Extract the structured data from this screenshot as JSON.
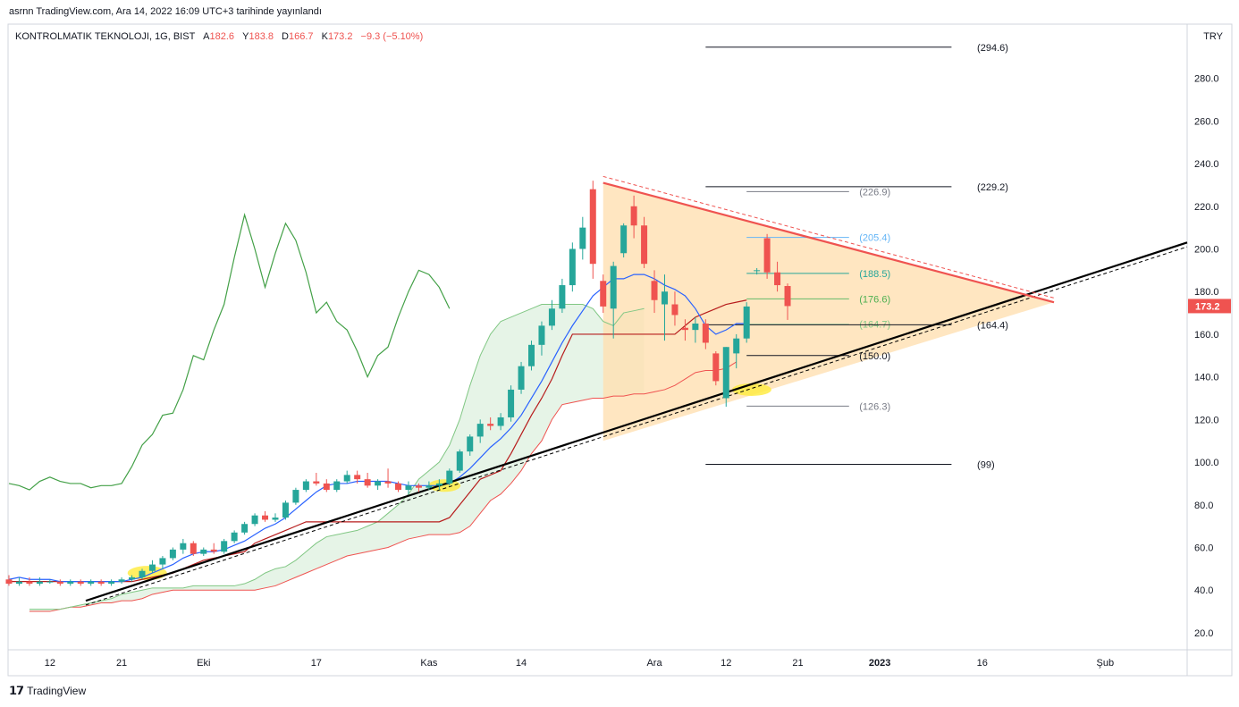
{
  "header": {
    "published": "asrnn TradingView.com, Ara 14, 2022 16:09 UTC+3 tarihinde yayınlandı"
  },
  "legend": {
    "symbol": "KONTROLMATIK TEKNOLOJI, 1G, BIST",
    "open_key": "A",
    "open": "182.6",
    "high_key": "Y",
    "high": "183.8",
    "low_key": "D",
    "low": "166.7",
    "close_key": "K",
    "close": "173.2",
    "change": "−9.3 (−5.10%)"
  },
  "price_axis": {
    "currency": "TRY",
    "last_price": "173.2",
    "last_color": "#ef5350"
  },
  "footer": {
    "brand": "TradingView"
  },
  "colors": {
    "up": "#26a69a",
    "down": "#ef5350",
    "triangle": "#ffe0b2",
    "cloud": "#c8e6c9",
    "fib_blue": "#64b5f6",
    "fib_green": "#26a69a"
  },
  "chart_data": {
    "type": "candlestick",
    "y_axis": {
      "range": [
        12,
        305
      ],
      "ticks": [
        20.0,
        40.0,
        60.0,
        80.0,
        100.0,
        120.0,
        140.0,
        160.0,
        180.0,
        200.0,
        220.0,
        240.0,
        260.0,
        280.0
      ],
      "tick_labels": [
        "20.0",
        "40.0",
        "60.0",
        "80.0",
        "100.0",
        "120.0",
        "140.0",
        "160.0",
        "180.0",
        "200.0",
        "220.0",
        "240.0",
        "260.0",
        "280.0"
      ]
    },
    "x_axis": {
      "range": [
        0,
        115
      ],
      "ticks": [
        {
          "i": 4,
          "label": "12"
        },
        {
          "i": 11,
          "label": "21"
        },
        {
          "i": 19,
          "label": "Eki"
        },
        {
          "i": 30,
          "label": "17"
        },
        {
          "i": 41,
          "label": "Kas"
        },
        {
          "i": 50,
          "label": "14"
        },
        {
          "i": 63,
          "label": "Ara"
        },
        {
          "i": 70,
          "label": "12"
        },
        {
          "i": 77,
          "label": "21"
        },
        {
          "i": 85,
          "label": "2023",
          "bold": true
        },
        {
          "i": 95,
          "label": "16"
        },
        {
          "i": 107,
          "label": "Şub"
        }
      ]
    },
    "candles": [
      {
        "o": 45,
        "h": 47,
        "l": 42,
        "c": 43
      },
      {
        "o": 43,
        "h": 46,
        "l": 42,
        "c": 44
      },
      {
        "o": 44,
        "h": 46,
        "l": 42,
        "c": 43
      },
      {
        "o": 43,
        "h": 46,
        "l": 42,
        "c": 44
      },
      {
        "o": 44,
        "h": 45,
        "l": 43,
        "c": 44
      },
      {
        "o": 44,
        "h": 45,
        "l": 42,
        "c": 43
      },
      {
        "o": 43,
        "h": 45,
        "l": 42,
        "c": 44
      },
      {
        "o": 44,
        "h": 45,
        "l": 42,
        "c": 43
      },
      {
        "o": 43,
        "h": 45,
        "l": 42,
        "c": 44
      },
      {
        "o": 44,
        "h": 45,
        "l": 42,
        "c": 43
      },
      {
        "o": 43,
        "h": 45,
        "l": 42,
        "c": 44
      },
      {
        "o": 44,
        "h": 46,
        "l": 43,
        "c": 45
      },
      {
        "o": 45,
        "h": 47,
        "l": 44,
        "c": 46
      },
      {
        "o": 46,
        "h": 50,
        "l": 45,
        "c": 49
      },
      {
        "o": 49,
        "h": 54,
        "l": 48,
        "c": 52
      },
      {
        "o": 52,
        "h": 56,
        "l": 50,
        "c": 55
      },
      {
        "o": 55,
        "h": 60,
        "l": 54,
        "c": 59
      },
      {
        "o": 59,
        "h": 64,
        "l": 57,
        "c": 62
      },
      {
        "o": 62,
        "h": 63,
        "l": 56,
        "c": 57
      },
      {
        "o": 57,
        "h": 60,
        "l": 56,
        "c": 59
      },
      {
        "o": 59,
        "h": 62,
        "l": 57,
        "c": 58
      },
      {
        "o": 58,
        "h": 64,
        "l": 57,
        "c": 63
      },
      {
        "o": 63,
        "h": 68,
        "l": 62,
        "c": 67
      },
      {
        "o": 67,
        "h": 72,
        "l": 66,
        "c": 71
      },
      {
        "o": 71,
        "h": 76,
        "l": 70,
        "c": 75
      },
      {
        "o": 75,
        "h": 77,
        "l": 72,
        "c": 73
      },
      {
        "o": 73,
        "h": 76,
        "l": 72,
        "c": 74
      },
      {
        "o": 74,
        "h": 82,
        "l": 73,
        "c": 81
      },
      {
        "o": 81,
        "h": 88,
        "l": 80,
        "c": 87
      },
      {
        "o": 87,
        "h": 92,
        "l": 86,
        "c": 91
      },
      {
        "o": 91,
        "h": 95,
        "l": 89,
        "c": 90
      },
      {
        "o": 90,
        "h": 92,
        "l": 86,
        "c": 87
      },
      {
        "o": 87,
        "h": 92,
        "l": 86,
        "c": 91
      },
      {
        "o": 91,
        "h": 96,
        "l": 90,
        "c": 94
      },
      {
        "o": 94,
        "h": 96,
        "l": 90,
        "c": 92
      },
      {
        "o": 92,
        "h": 95,
        "l": 88,
        "c": 89
      },
      {
        "o": 89,
        "h": 92,
        "l": 87,
        "c": 91
      },
      {
        "o": 91,
        "h": 97,
        "l": 88,
        "c": 90
      },
      {
        "o": 90,
        "h": 91,
        "l": 86,
        "c": 87
      },
      {
        "o": 87,
        "h": 91,
        "l": 85,
        "c": 89
      },
      {
        "o": 89,
        "h": 90,
        "l": 86,
        "c": 88
      },
      {
        "o": 88,
        "h": 91,
        "l": 87,
        "c": 89
      },
      {
        "o": 89,
        "h": 92,
        "l": 87,
        "c": 90
      },
      {
        "o": 90,
        "h": 97,
        "l": 89,
        "c": 96
      },
      {
        "o": 96,
        "h": 106,
        "l": 95,
        "c": 105
      },
      {
        "o": 105,
        "h": 113,
        "l": 103,
        "c": 112
      },
      {
        "o": 112,
        "h": 120,
        "l": 109,
        "c": 118
      },
      {
        "o": 118,
        "h": 121,
        "l": 115,
        "c": 117
      },
      {
        "o": 117,
        "h": 123,
        "l": 115,
        "c": 121
      },
      {
        "o": 121,
        "h": 136,
        "l": 119,
        "c": 134
      },
      {
        "o": 134,
        "h": 147,
        "l": 132,
        "c": 145
      },
      {
        "o": 145,
        "h": 157,
        "l": 143,
        "c": 155
      },
      {
        "o": 155,
        "h": 166,
        "l": 150,
        "c": 164
      },
      {
        "o": 164,
        "h": 176,
        "l": 162,
        "c": 172
      },
      {
        "o": 172,
        "h": 186,
        "l": 170,
        "c": 183
      },
      {
        "o": 183,
        "h": 203,
        "l": 180,
        "c": 200
      },
      {
        "o": 200,
        "h": 215,
        "l": 195,
        "c": 210
      },
      {
        "o": 228,
        "h": 232,
        "l": 186,
        "c": 193
      },
      {
        "o": 185,
        "h": 188,
        "l": 170,
        "c": 173
      },
      {
        "o": 172,
        "h": 194,
        "l": 158,
        "c": 192
      },
      {
        "o": 198,
        "h": 212,
        "l": 196,
        "c": 211
      },
      {
        "o": 220,
        "h": 225,
        "l": 205,
        "c": 211
      },
      {
        "o": 211,
        "h": 215,
        "l": 191,
        "c": 193
      },
      {
        "o": 185,
        "h": 190,
        "l": 170,
        "c": 176
      },
      {
        "o": 174,
        "h": 188,
        "l": 157,
        "c": 180
      },
      {
        "o": 174,
        "h": 180,
        "l": 164,
        "c": 169
      },
      {
        "o": 163,
        "h": 167,
        "l": 157,
        "c": 162
      },
      {
        "o": 162,
        "h": 168,
        "l": 156,
        "c": 165
      },
      {
        "o": 165,
        "h": 167,
        "l": 153,
        "c": 156
      },
      {
        "o": 151,
        "h": 152,
        "l": 136,
        "c": 138
      },
      {
        "o": 130,
        "h": 154,
        "l": 126,
        "c": 154
      },
      {
        "o": 151,
        "h": 160,
        "l": 144,
        "c": 158
      },
      {
        "o": 158,
        "h": 175,
        "l": 156,
        "c": 173
      },
      {
        "o": 190,
        "h": 191,
        "l": 188,
        "c": 190
      },
      {
        "o": 205,
        "h": 207,
        "l": 186,
        "c": 189
      },
      {
        "o": 189,
        "h": 194,
        "l": 180,
        "c": 183
      },
      {
        "o": 182.6,
        "h": 183.8,
        "l": 166.7,
        "c": 173.2
      }
    ],
    "series": [
      {
        "name": "",
        "color": "#2962ff",
        "values": [
          45,
          46,
          45,
          45,
          45,
          44,
          44,
          44,
          44,
          44,
          44,
          44,
          45,
          46,
          48,
          50,
          52,
          55,
          57,
          58,
          58,
          59,
          61,
          63,
          66,
          69,
          71,
          74,
          78,
          82,
          86,
          89,
          90,
          90,
          91,
          91,
          91,
          91,
          90,
          89,
          89,
          89,
          89,
          90,
          93,
          97,
          102,
          107,
          111,
          116,
          122,
          130,
          138,
          147,
          156,
          164,
          171,
          178,
          182,
          186,
          186,
          188,
          188,
          186,
          183,
          181,
          178,
          172,
          164,
          160,
          162,
          165,
          165
        ]
      },
      {
        "name": "",
        "color": "#b71c1c",
        "values": [
          44,
          44,
          44,
          44,
          44,
          44,
          44,
          44,
          44,
          44,
          44,
          44,
          44,
          45,
          46,
          47,
          48,
          50,
          52,
          54,
          55,
          56,
          57,
          58,
          62,
          64,
          66,
          68,
          70,
          72,
          72,
          72,
          72,
          72,
          72,
          72,
          72,
          72,
          72,
          72,
          72,
          72,
          72,
          74,
          80,
          86,
          92,
          94,
          96,
          104,
          113,
          122,
          130,
          139,
          150,
          160,
          160,
          160,
          160,
          160,
          160,
          160,
          160,
          160,
          160,
          160,
          164,
          168,
          170,
          172,
          174,
          175,
          176
        ]
      },
      {
        "name": "",
        "color": "#43a047",
        "values": [
          90,
          89,
          87,
          91,
          93,
          91,
          90,
          90,
          88,
          89,
          89,
          90,
          98,
          108,
          113,
          122,
          123,
          134,
          150,
          148,
          162,
          174,
          196,
          216,
          200,
          182,
          198,
          212,
          204,
          189,
          170,
          175,
          166,
          162,
          152,
          140,
          150,
          154,
          168,
          180,
          190,
          188,
          182,
          172
        ]
      },
      {
        "name": "",
        "color": "#ef9a9a",
        "values": [
          30,
          30,
          30,
          31,
          32,
          32,
          33,
          34,
          34,
          35,
          35,
          36,
          38,
          39,
          40,
          40,
          40,
          40,
          40,
          40,
          40,
          40,
          40,
          41,
          42,
          44,
          46,
          48,
          50,
          52,
          54,
          56,
          57,
          58,
          59,
          60,
          62,
          64,
          65,
          66,
          66,
          66,
          67,
          70,
          76,
          82,
          85,
          90,
          96,
          104,
          110,
          120,
          127,
          128,
          129,
          130,
          130,
          131,
          131,
          132,
          132,
          133,
          134,
          136,
          139,
          142,
          143,
          143,
          144,
          147
        ]
      },
      {
        "name": "",
        "color": "#a5d6a7",
        "values": [
          31,
          31,
          31,
          31,
          32,
          33,
          34,
          35,
          36,
          38,
          39,
          40,
          41,
          41,
          41,
          41,
          42,
          42,
          42,
          42,
          42,
          43,
          45,
          48,
          50,
          51,
          54,
          58,
          62,
          65,
          66,
          67,
          68,
          70,
          72,
          76,
          80,
          85,
          92,
          96,
          100,
          108,
          120,
          136,
          150,
          160,
          166,
          168,
          170,
          172,
          174,
          174,
          174,
          174,
          174,
          172,
          166,
          164,
          170,
          171,
          172
        ]
      }
    ],
    "fib_levels": [
      {
        "value": 294.6,
        "label": "(294.6)"
      },
      {
        "value": 229.2,
        "label": "(229.2)"
      },
      {
        "value": 226.9,
        "label": "(226.9)"
      },
      {
        "value": 205.4,
        "label": "(205.4)"
      },
      {
        "value": 188.5,
        "label": "(188.5)"
      },
      {
        "value": 176.6,
        "label": "(176.6)"
      },
      {
        "value": 164.7,
        "label": "(164.7)"
      },
      {
        "value": 164.4,
        "label": "(164.4)"
      },
      {
        "value": 150.0,
        "label": "(150.0)"
      },
      {
        "value": 126.3,
        "label": "(126.3)"
      },
      {
        "value": 99,
        "label": "(99)"
      }
    ]
  }
}
